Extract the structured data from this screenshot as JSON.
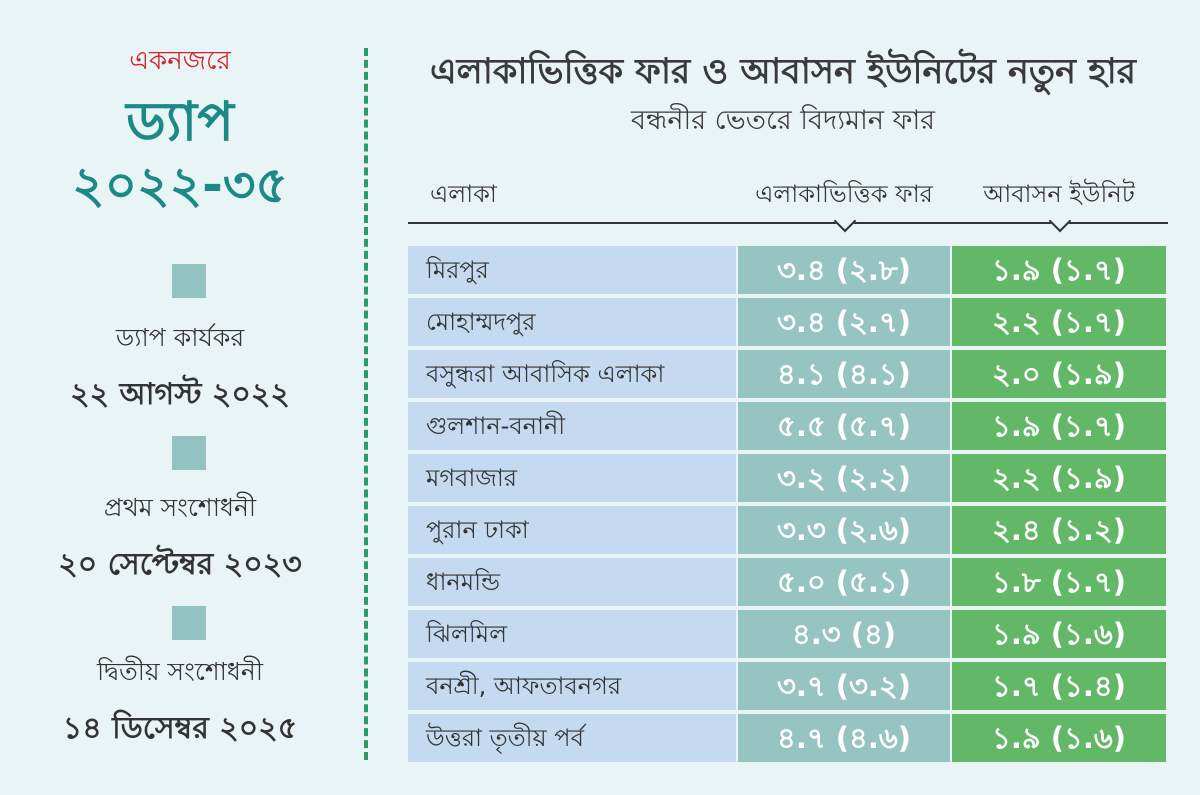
{
  "sidebar": {
    "kicker": "একনজরে",
    "title": "ড্যাপ",
    "years": "২০২২-৩৫",
    "events": [
      {
        "label": "ড্যাপ কার্যকর",
        "date": "২২ আগস্ট ২০২২"
      },
      {
        "label": "প্রথম সংশোধনী",
        "date": "২০ সেপ্টেম্বর ২০২৩"
      },
      {
        "label": "দ্বিতীয় সংশোধনী",
        "date": "১৪ ডিসেম্বর ২০২৫"
      }
    ]
  },
  "main": {
    "title": "এলাকাভিত্তিক ফার ও আবাসন ইউনিটের নতুন হার",
    "subtitle": "বন্ধনীর ভেতরে বিদ্যমান ফার"
  },
  "table": {
    "headers": [
      "এলাকা",
      "এলাকাভিত্তিক ফার",
      "আবাসন ইউনিট"
    ],
    "rows": [
      {
        "area": "মিরপুর",
        "far": "৩.৪ (২.৮)",
        "unit": "১.৯ (১.৭)"
      },
      {
        "area": "মোহাম্মদপুর",
        "far": "৩.৪ (২.৭)",
        "unit": "২.২ (১.৭)"
      },
      {
        "area": "বসুন্ধরা আবাসিক এলাকা",
        "far": "৪.১ (৪.১)",
        "unit": "২.০ (১.৯)"
      },
      {
        "area": "গুলশান-বনানী",
        "far": "৫.৫ (৫.৭)",
        "unit": "১.৯ (১.৭)"
      },
      {
        "area": "মগবাজার",
        "far": "৩.২ (২.২)",
        "unit": "২.২ (১.৯)"
      },
      {
        "area": "পুরান ঢাকা",
        "far": "৩.৩ (২.৬)",
        "unit": "২.৪ (১.২)"
      },
      {
        "area": "ধানমন্ডি",
        "far": "৫.০ (৫.১)",
        "unit": "১.৮ (১.৭)"
      },
      {
        "area": "ঝিলমিল",
        "far": "৪.৩ (৪)",
        "unit": "১.৯ (১.৬)"
      },
      {
        "area": "বনশ্রী, আফতাবনগর",
        "far": "৩.৭ (৩.২)",
        "unit": "১.৭ (১.৪)"
      },
      {
        "area": "উত্তরা তৃতীয় পর্ব",
        "far": "৪.৭ (৪.৬)",
        "unit": "১.৯ (১.৬)"
      }
    ]
  },
  "colors": {
    "accent_red": "#d2232a",
    "accent_teal": "#1b8a86",
    "area_cell": "#c5daf0",
    "far_cell": "#95c4c3",
    "unit_cell": "#63b868",
    "divider": "#2e9a6a"
  }
}
